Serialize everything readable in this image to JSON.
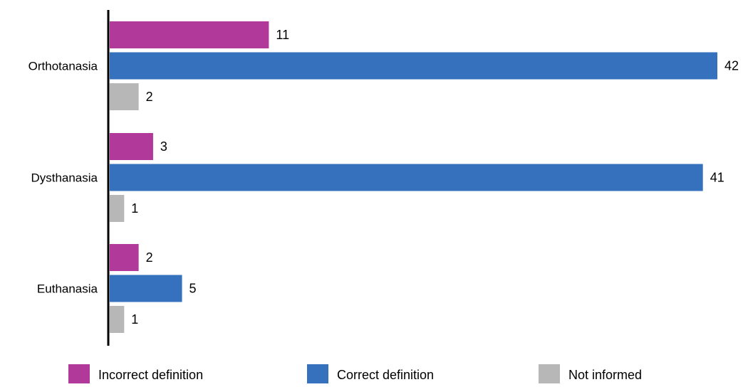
{
  "chart_data": {
    "type": "bar",
    "orientation": "horizontal",
    "categories": [
      "Orthotanasia",
      "Dysthanasia",
      "Euthanasia"
    ],
    "series": [
      {
        "name": "Incorrect definition",
        "values": [
          11,
          3,
          2
        ],
        "color": "#b0399a"
      },
      {
        "name": "Correct definition",
        "values": [
          42,
          41,
          5
        ],
        "color": "#3571bd"
      },
      {
        "name": "Not informed",
        "values": [
          2,
          1,
          1
        ],
        "color": "#b7b7b7"
      }
    ],
    "xlim": [
      0,
      42
    ],
    "grid": false,
    "legend_position": "bottom",
    "data_labels": true
  }
}
